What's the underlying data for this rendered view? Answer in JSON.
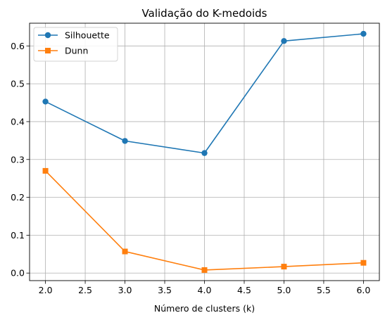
{
  "chart_data": {
    "type": "line",
    "title": "Validação do K-medoids",
    "xlabel": "Número de clusters (k)",
    "ylabel": "",
    "xlim": [
      1.8,
      6.2
    ],
    "ylim": [
      -0.02,
      0.66
    ],
    "xticks": [
      2.0,
      2.5,
      3.0,
      3.5,
      4.0,
      4.5,
      5.0,
      5.5,
      6.0
    ],
    "xtick_labels": [
      "2.0",
      "2.5",
      "3.0",
      "3.5",
      "4.0",
      "4.5",
      "5.0",
      "5.5",
      "6.0"
    ],
    "yticks": [
      0.0,
      0.1,
      0.2,
      0.3,
      0.4,
      0.5,
      0.6
    ],
    "ytick_labels": [
      "0.0",
      "0.1",
      "0.2",
      "0.3",
      "0.4",
      "0.5",
      "0.6"
    ],
    "grid": true,
    "legend_position": "top-left",
    "x": [
      2,
      3,
      4,
      5,
      6
    ],
    "series": [
      {
        "name": "Silhouette",
        "marker": "circle",
        "color": "#1f77b4",
        "values": [
          0.453,
          0.349,
          0.317,
          0.613,
          0.632
        ]
      },
      {
        "name": "Dunn",
        "marker": "square",
        "color": "#ff7f0e",
        "values": [
          0.27,
          0.057,
          0.008,
          0.017,
          0.027
        ]
      }
    ]
  }
}
